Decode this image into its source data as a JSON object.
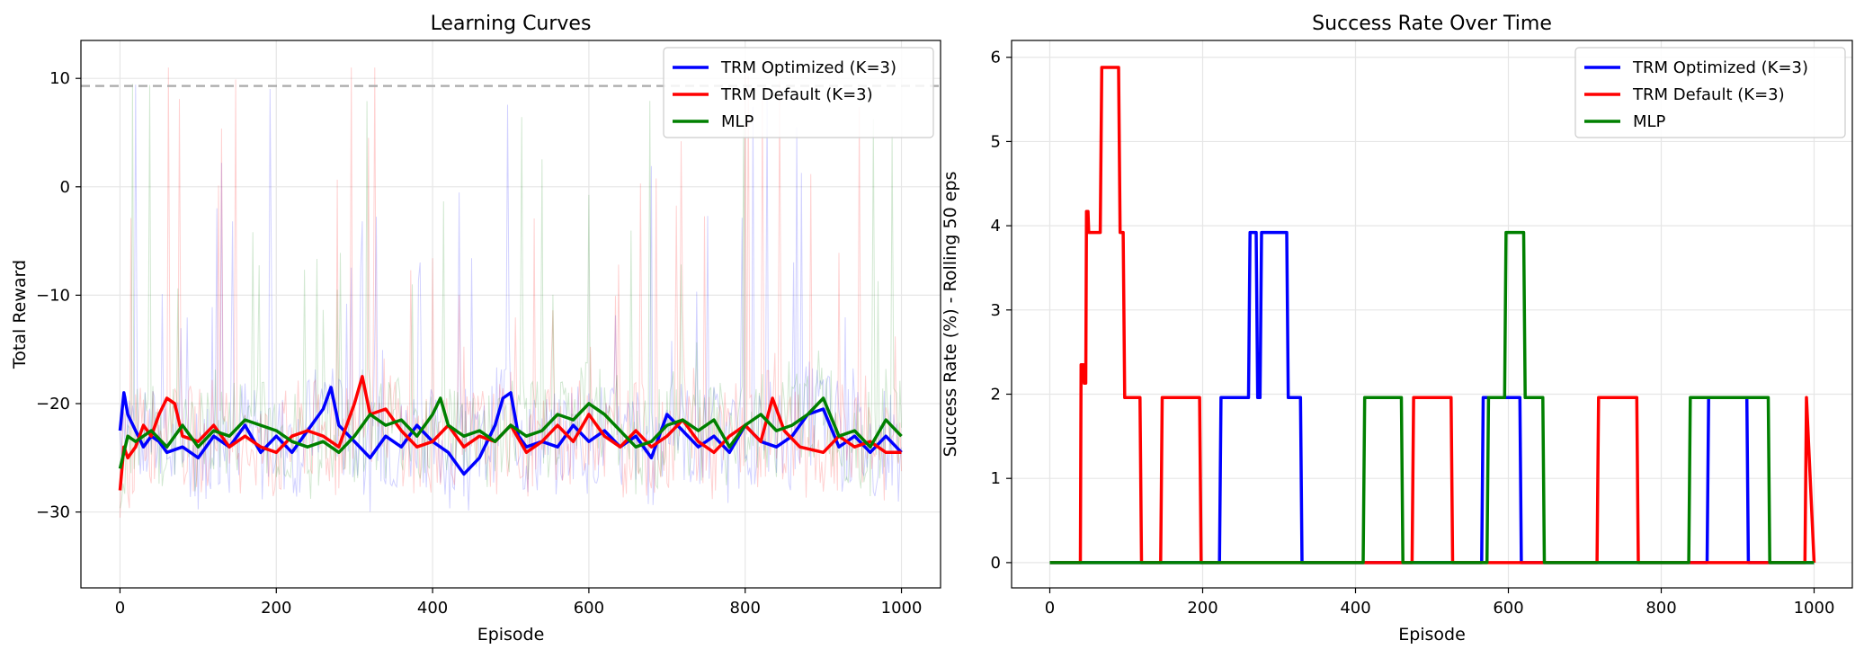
{
  "chart_data": [
    {
      "type": "line",
      "title": "Learning Curves",
      "xlabel": "Episode",
      "ylabel": "Total Reward",
      "xlim": [
        -50,
        1050
      ],
      "ylim": [
        -37,
        13.5
      ],
      "xticks": [
        0,
        200,
        400,
        600,
        800,
        1000
      ],
      "yticks": [
        -30,
        -20,
        -10,
        0,
        10
      ],
      "grid": true,
      "legend_position": "top-right",
      "reference_line": {
        "y": 9.3,
        "style": "dashed",
        "color": "#aaaaaa"
      },
      "raw_series_note": "faint per-episode traces behind smoothed lines",
      "series": [
        {
          "name": "TRM Optimized (K=3)",
          "color": "#0000ff",
          "x": [
            0,
            5,
            10,
            20,
            30,
            40,
            50,
            60,
            80,
            100,
            120,
            140,
            160,
            180,
            200,
            220,
            240,
            260,
            270,
            280,
            300,
            320,
            340,
            360,
            380,
            400,
            420,
            440,
            460,
            480,
            490,
            500,
            510,
            520,
            540,
            560,
            580,
            600,
            620,
            640,
            660,
            680,
            700,
            720,
            740,
            760,
            780,
            800,
            820,
            840,
            860,
            880,
            900,
            920,
            940,
            960,
            980,
            1000
          ],
          "y": [
            -22.5,
            -19,
            -21,
            -22.5,
            -24,
            -23,
            -23.5,
            -24.5,
            -24,
            -25,
            -23,
            -24,
            -22,
            -24.5,
            -23,
            -24.5,
            -22.5,
            -20.5,
            -18.5,
            -22,
            -23.5,
            -25,
            -23,
            -24,
            -22,
            -23.5,
            -24.5,
            -26.5,
            -25,
            -22,
            -19.5,
            -19,
            -23,
            -24,
            -23.5,
            -24,
            -22,
            -23.5,
            -22.5,
            -24,
            -23,
            -25,
            -21,
            -22.5,
            -24,
            -23,
            -24.5,
            -22,
            -23.5,
            -24,
            -23,
            -21,
            -20.5,
            -24,
            -23,
            -24.5,
            -23,
            -24.5
          ]
        },
        {
          "name": "TRM Default (K=3)",
          "color": "#ff0000",
          "x": [
            0,
            5,
            10,
            20,
            30,
            40,
            50,
            60,
            70,
            80,
            100,
            120,
            140,
            160,
            180,
            200,
            220,
            240,
            260,
            280,
            300,
            310,
            320,
            340,
            360,
            380,
            400,
            420,
            440,
            460,
            480,
            500,
            520,
            540,
            560,
            580,
            600,
            620,
            640,
            660,
            680,
            700,
            720,
            740,
            760,
            780,
            800,
            820,
            835,
            850,
            870,
            900,
            920,
            940,
            960,
            980,
            1000
          ],
          "y": [
            -28,
            -24,
            -25,
            -24,
            -22,
            -23,
            -21,
            -19.5,
            -20,
            -23,
            -23.5,
            -22,
            -24,
            -23,
            -24,
            -24.5,
            -23,
            -22.5,
            -23,
            -24,
            -20,
            -17.5,
            -21,
            -20.5,
            -22.5,
            -24,
            -23.5,
            -22,
            -24,
            -23,
            -23.5,
            -22,
            -24.5,
            -23.5,
            -22,
            -23.5,
            -21,
            -23,
            -24,
            -22.5,
            -24,
            -23,
            -21.5,
            -23.5,
            -24.5,
            -23,
            -22,
            -23.5,
            -19.5,
            -22.5,
            -24,
            -24.5,
            -23,
            -24,
            -23.5,
            -24.5,
            -24.5
          ]
        },
        {
          "name": "MLP",
          "color": "#008000",
          "x": [
            0,
            5,
            10,
            20,
            40,
            60,
            80,
            100,
            120,
            140,
            160,
            180,
            200,
            220,
            240,
            260,
            280,
            300,
            320,
            340,
            360,
            380,
            400,
            410,
            420,
            440,
            460,
            480,
            500,
            520,
            540,
            560,
            580,
            600,
            620,
            640,
            660,
            680,
            700,
            720,
            740,
            760,
            780,
            800,
            820,
            840,
            860,
            880,
            900,
            920,
            940,
            960,
            980,
            1000
          ],
          "y": [
            -26,
            -24.5,
            -23,
            -23.5,
            -22.5,
            -24,
            -22,
            -24,
            -22.5,
            -23,
            -21.5,
            -22,
            -22.5,
            -23.5,
            -24,
            -23.5,
            -24.5,
            -23,
            -21,
            -22,
            -21.5,
            -23,
            -21,
            -19.5,
            -22,
            -23,
            -22.5,
            -23.5,
            -22,
            -23,
            -22.5,
            -21,
            -21.5,
            -20,
            -21,
            -22.5,
            -24,
            -23.5,
            -22,
            -21.5,
            -22.5,
            -21.5,
            -24,
            -22,
            -21,
            -22.5,
            -22,
            -21,
            -19.5,
            -23,
            -22.5,
            -24,
            -21.5,
            -23
          ]
        }
      ]
    },
    {
      "type": "line",
      "title": "Success Rate Over Time",
      "xlabel": "Episode",
      "ylabel": "Success Rate (%) - Rolling 50 eps",
      "xlim": [
        -50,
        1050
      ],
      "ylim": [
        -0.3,
        6.2
      ],
      "xticks": [
        0,
        200,
        400,
        600,
        800,
        1000
      ],
      "yticks": [
        0,
        1,
        2,
        3,
        4,
        5,
        6
      ],
      "grid": true,
      "legend_position": "top-right",
      "series": [
        {
          "name": "TRM Optimized (K=3)",
          "color": "#0000ff",
          "x": [
            0,
            222,
            224,
            260,
            262,
            270,
            272,
            275,
            277,
            280,
            282,
            310,
            312,
            328,
            330,
            565,
            567,
            615,
            617,
            860,
            862,
            912,
            914,
            1000
          ],
          "y": [
            0,
            0,
            1.96,
            1.96,
            3.92,
            3.92,
            1.96,
            1.96,
            3.92,
            3.92,
            3.92,
            3.92,
            1.96,
            1.96,
            0,
            0,
            1.96,
            1.96,
            0,
            0,
            1.96,
            1.96,
            0,
            0
          ]
        },
        {
          "name": "TRM Default (K=3)",
          "color": "#ff0000",
          "x": [
            0,
            40,
            41,
            44,
            45,
            47,
            48,
            50,
            51,
            66,
            68,
            90,
            92,
            96,
            98,
            118,
            120,
            145,
            147,
            196,
            198,
            474,
            476,
            525,
            527,
            716,
            718,
            768,
            770,
            988,
            990,
            1000
          ],
          "y": [
            0,
            0,
            2.35,
            2.35,
            2.13,
            2.13,
            4.17,
            4.17,
            3.92,
            3.92,
            5.88,
            5.88,
            3.92,
            3.92,
            1.96,
            1.96,
            0,
            0,
            1.96,
            1.96,
            0,
            0,
            1.96,
            1.96,
            0,
            0,
            1.96,
            1.96,
            0,
            0,
            1.96,
            0
          ]
        },
        {
          "name": "MLP",
          "color": "#008000",
          "x": [
            0,
            410,
            412,
            460,
            462,
            572,
            574,
            595,
            597,
            620,
            622,
            645,
            647,
            836,
            838,
            888,
            890,
            940,
            942,
            1000
          ],
          "y": [
            0,
            0,
            1.96,
            1.96,
            0,
            0,
            1.96,
            1.96,
            3.92,
            3.92,
            1.96,
            1.96,
            0,
            0,
            1.96,
            1.96,
            1.96,
            1.96,
            0,
            0
          ]
        }
      ]
    }
  ]
}
